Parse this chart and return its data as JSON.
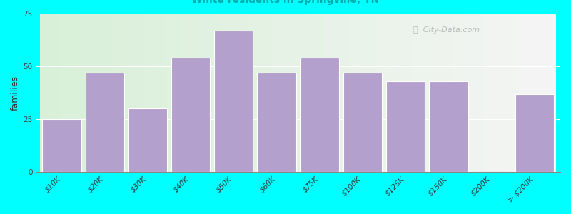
{
  "ylabel": "families",
  "categories": [
    "$10K",
    "$20K",
    "$30K",
    "$40K",
    "$50K",
    "$60K",
    "$75K",
    "$100K",
    "$125K",
    "$150K",
    "$200K",
    "> $200K"
  ],
  "values": [
    25,
    47,
    30,
    54,
    67,
    47,
    54,
    47,
    43,
    43,
    0,
    37
  ],
  "bar_color": "#b3a0cc",
  "background_color": "#00ffff",
  "ylim": [
    0,
    75
  ],
  "yticks": [
    0,
    25,
    50,
    75
  ],
  "title_fontsize": 15,
  "subtitle_fontsize": 10,
  "ylabel_fontsize": 9,
  "tick_fontsize": 7.5,
  "bar_edge_color": "white",
  "watermark_text": "ⓘ  City-Data.com",
  "watermark_color": "#aaaaaa",
  "subtitle_color": "#00aaaa",
  "title_color": "#111111"
}
